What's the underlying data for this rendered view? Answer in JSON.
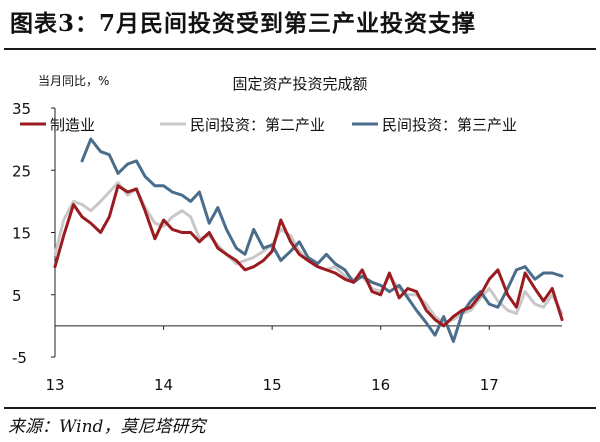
{
  "page": {
    "title": "图表3：7月民间投资受到第三产业投资支撑",
    "source": "来源：Wind，莫尼塔研究"
  },
  "colors": {
    "manufacturing": "#9b1c20",
    "secondary": "#c8c8c8",
    "tertiary": "#4a6d8c",
    "axis": "#222222",
    "background": "#ffffff"
  },
  "chart_data": {
    "type": "line",
    "title": "固定资产投资完成额",
    "ylabel": "当月同比，%",
    "xlabel": "",
    "ylim": [
      -5,
      35
    ],
    "yticks": [
      35,
      25,
      15,
      5,
      -5
    ],
    "xlim": [
      2013.0,
      2017.67
    ],
    "xticks": [
      {
        "label": "13",
        "x": 2013
      },
      {
        "label": "14",
        "x": 2014
      },
      {
        "label": "15",
        "x": 2015
      },
      {
        "label": "16",
        "x": 2016
      },
      {
        "label": "17",
        "x": 2017
      }
    ],
    "grid": false,
    "legend": "top",
    "series": [
      {
        "name": "制造业",
        "color_key": "manufacturing",
        "points": [
          [
            2013.0,
            9.5
          ],
          [
            2013.08,
            14.5
          ],
          [
            2013.17,
            19.5
          ],
          [
            2013.25,
            17.5
          ],
          [
            2013.33,
            16.5
          ],
          [
            2013.42,
            15.0
          ],
          [
            2013.5,
            17.5
          ],
          [
            2013.58,
            22.5
          ],
          [
            2013.67,
            21.5
          ],
          [
            2013.75,
            22.0
          ],
          [
            2013.83,
            18.5
          ],
          [
            2013.92,
            14.0
          ],
          [
            2014.0,
            17.0
          ],
          [
            2014.08,
            15.5
          ],
          [
            2014.17,
            15.0
          ],
          [
            2014.25,
            15.0
          ],
          [
            2014.33,
            13.5
          ],
          [
            2014.42,
            15.0
          ],
          [
            2014.5,
            12.5
          ],
          [
            2014.58,
            11.5
          ],
          [
            2014.67,
            10.5
          ],
          [
            2014.75,
            9.0
          ],
          [
            2014.83,
            9.5
          ],
          [
            2014.92,
            10.5
          ],
          [
            2015.0,
            12.0
          ],
          [
            2015.08,
            17.0
          ],
          [
            2015.17,
            13.5
          ],
          [
            2015.25,
            11.5
          ],
          [
            2015.33,
            10.5
          ],
          [
            2015.42,
            9.5
          ],
          [
            2015.5,
            9.0
          ],
          [
            2015.58,
            8.5
          ],
          [
            2015.67,
            7.5
          ],
          [
            2015.75,
            7.0
          ],
          [
            2015.83,
            9.0
          ],
          [
            2015.92,
            5.5
          ],
          [
            2016.0,
            5.0
          ],
          [
            2016.08,
            8.5
          ],
          [
            2016.17,
            4.5
          ],
          [
            2016.25,
            6.0
          ],
          [
            2016.33,
            5.5
          ],
          [
            2016.42,
            2.5
          ],
          [
            2016.5,
            1.0
          ],
          [
            2016.58,
            0.0
          ],
          [
            2016.67,
            1.5
          ],
          [
            2016.75,
            2.5
          ],
          [
            2016.83,
            3.0
          ],
          [
            2016.92,
            5.0
          ],
          [
            2017.0,
            7.5
          ],
          [
            2017.08,
            9.0
          ],
          [
            2017.17,
            5.0
          ],
          [
            2017.25,
            3.0
          ],
          [
            2017.33,
            8.5
          ],
          [
            2017.42,
            6.0
          ],
          [
            2017.5,
            4.0
          ],
          [
            2017.58,
            6.0
          ],
          [
            2017.67,
            1.0
          ]
        ]
      },
      {
        "name": "民间投资：第二产业",
        "color_key": "secondary",
        "points": [
          [
            2013.0,
            11.5
          ],
          [
            2013.08,
            17.0
          ],
          [
            2013.17,
            20.0
          ],
          [
            2013.25,
            19.5
          ],
          [
            2013.33,
            18.5
          ],
          [
            2013.42,
            20.0
          ],
          [
            2013.5,
            21.5
          ],
          [
            2013.58,
            23.0
          ],
          [
            2013.67,
            21.0
          ],
          [
            2013.75,
            22.0
          ],
          [
            2013.83,
            19.0
          ],
          [
            2013.92,
            16.5
          ],
          [
            2014.0,
            16.0
          ],
          [
            2014.08,
            17.5
          ],
          [
            2014.17,
            18.5
          ],
          [
            2014.25,
            17.5
          ],
          [
            2014.33,
            14.0
          ],
          [
            2014.42,
            14.5
          ],
          [
            2014.5,
            13.0
          ],
          [
            2014.58,
            11.5
          ],
          [
            2014.67,
            10.0
          ],
          [
            2014.75,
            10.5
          ],
          [
            2014.83,
            11.0
          ],
          [
            2014.92,
            12.0
          ],
          [
            2015.0,
            13.0
          ],
          [
            2015.08,
            15.5
          ],
          [
            2015.17,
            14.5
          ],
          [
            2015.25,
            12.0
          ],
          [
            2015.33,
            10.5
          ],
          [
            2015.42,
            9.5
          ],
          [
            2015.5,
            9.0
          ],
          [
            2015.58,
            9.5
          ],
          [
            2015.67,
            8.0
          ],
          [
            2015.75,
            7.5
          ],
          [
            2015.83,
            8.0
          ],
          [
            2015.92,
            6.0
          ],
          [
            2016.0,
            5.5
          ],
          [
            2016.08,
            8.0
          ],
          [
            2016.17,
            6.0
          ],
          [
            2016.25,
            5.0
          ],
          [
            2016.33,
            5.0
          ],
          [
            2016.42,
            3.5
          ],
          [
            2016.5,
            1.5
          ],
          [
            2016.58,
            0.5
          ],
          [
            2016.67,
            1.0
          ],
          [
            2016.75,
            2.0
          ],
          [
            2016.83,
            2.5
          ],
          [
            2016.92,
            4.5
          ],
          [
            2017.0,
            6.0
          ],
          [
            2017.08,
            4.0
          ],
          [
            2017.17,
            2.5
          ],
          [
            2017.25,
            2.0
          ],
          [
            2017.33,
            5.5
          ],
          [
            2017.42,
            3.5
          ],
          [
            2017.5,
            3.0
          ],
          [
            2017.58,
            5.0
          ],
          [
            2017.67,
            2.0
          ]
        ]
      },
      {
        "name": "民间投资：第三产业",
        "color_key": "tertiary",
        "points": [
          [
            2013.25,
            26.5
          ],
          [
            2013.33,
            30.0
          ],
          [
            2013.42,
            28.0
          ],
          [
            2013.5,
            27.5
          ],
          [
            2013.58,
            24.5
          ],
          [
            2013.67,
            26.0
          ],
          [
            2013.75,
            26.5
          ],
          [
            2013.83,
            24.0
          ],
          [
            2013.92,
            22.5
          ],
          [
            2014.0,
            22.5
          ],
          [
            2014.08,
            21.5
          ],
          [
            2014.17,
            21.0
          ],
          [
            2014.25,
            20.0
          ],
          [
            2014.33,
            21.5
          ],
          [
            2014.42,
            16.5
          ],
          [
            2014.5,
            19.0
          ],
          [
            2014.58,
            15.5
          ],
          [
            2014.67,
            12.5
          ],
          [
            2014.75,
            11.5
          ],
          [
            2014.83,
            15.5
          ],
          [
            2014.92,
            12.5
          ],
          [
            2015.0,
            13.0
          ],
          [
            2015.08,
            10.5
          ],
          [
            2015.17,
            12.0
          ],
          [
            2015.25,
            13.5
          ],
          [
            2015.33,
            11.0
          ],
          [
            2015.42,
            10.0
          ],
          [
            2015.5,
            11.5
          ],
          [
            2015.58,
            10.0
          ],
          [
            2015.67,
            9.0
          ],
          [
            2015.75,
            7.0
          ],
          [
            2015.83,
            8.0
          ],
          [
            2015.92,
            7.0
          ],
          [
            2016.0,
            6.5
          ],
          [
            2016.08,
            5.5
          ],
          [
            2016.17,
            6.5
          ],
          [
            2016.25,
            4.5
          ],
          [
            2016.33,
            2.5
          ],
          [
            2016.42,
            0.5
          ],
          [
            2016.5,
            -1.5
          ],
          [
            2016.58,
            1.5
          ],
          [
            2016.67,
            -2.5
          ],
          [
            2016.75,
            2.0
          ],
          [
            2016.83,
            4.0
          ],
          [
            2016.92,
            5.5
          ],
          [
            2017.0,
            3.5
          ],
          [
            2017.08,
            3.0
          ],
          [
            2017.17,
            6.0
          ],
          [
            2017.25,
            9.0
          ],
          [
            2017.33,
            9.5
          ],
          [
            2017.42,
            7.5
          ],
          [
            2017.5,
            8.5
          ],
          [
            2017.58,
            8.5
          ],
          [
            2017.67,
            8.0
          ]
        ]
      }
    ]
  }
}
